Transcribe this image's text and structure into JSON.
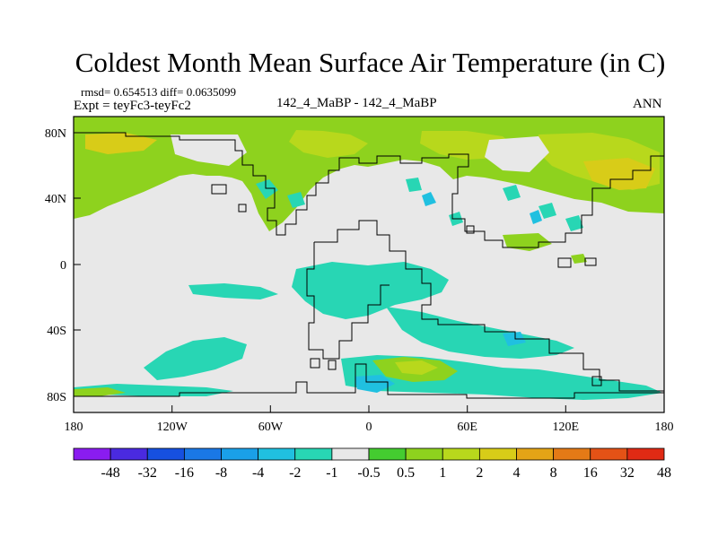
{
  "title": "Coldest Month Mean Surface Air Temperature (in C)",
  "stats": {
    "rmsd_line": "rmsd= 0.654513 diff= 0.0635099"
  },
  "experiment": "Expt = teyFc3-teyFc2",
  "period_label": "142_4_MaBP - 142_4_MaBP",
  "season": "ANN",
  "axes": {
    "x_ticks": [
      "180",
      "120W",
      "60W",
      "0",
      "60E",
      "120E",
      "180"
    ],
    "y_ticks": [
      "80N",
      "40N",
      "0",
      "40S",
      "80S"
    ]
  },
  "colorbar": {
    "colors": [
      "#8a1cf0",
      "#4a2ae0",
      "#1650e0",
      "#1a78e6",
      "#1aa0e8",
      "#20c0e0",
      "#28d6b4",
      "#e8e8e8",
      "#44cc30",
      "#8ed21e",
      "#b8d81c",
      "#d8cc18",
      "#e4a416",
      "#e47a16",
      "#e45216",
      "#e02a14"
    ],
    "labels": [
      "-48",
      "-32",
      "-16",
      "-8",
      "-4",
      "-2",
      "-1",
      "-0.5",
      "0.5",
      "1",
      "2",
      "4",
      "8",
      "16",
      "32",
      "48"
    ]
  }
}
